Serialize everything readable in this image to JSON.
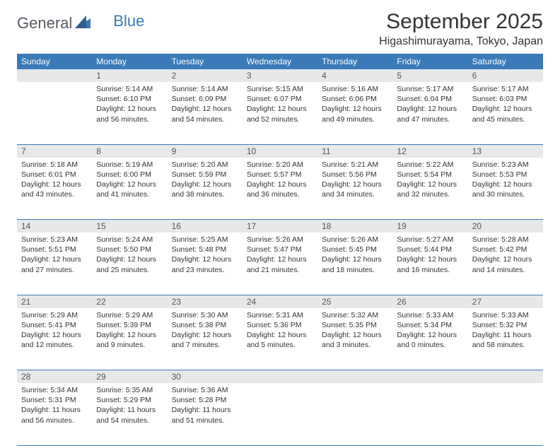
{
  "logo": {
    "text1": "General",
    "text2": "Blue"
  },
  "title": "September 2025",
  "location": "Higashimurayama, Tokyo, Japan",
  "colors": {
    "header_bg": "#3a7ab8",
    "header_text": "#ffffff",
    "daynum_bg": "#e7e8ea",
    "text": "#333333",
    "background": "#ffffff"
  },
  "day_headers": [
    "Sunday",
    "Monday",
    "Tuesday",
    "Wednesday",
    "Thursday",
    "Friday",
    "Saturday"
  ],
  "days": {
    "1": {
      "sunrise": "5:14 AM",
      "sunset": "6:10 PM",
      "daylight": "12 hours and 56 minutes."
    },
    "2": {
      "sunrise": "5:14 AM",
      "sunset": "6:09 PM",
      "daylight": "12 hours and 54 minutes."
    },
    "3": {
      "sunrise": "5:15 AM",
      "sunset": "6:07 PM",
      "daylight": "12 hours and 52 minutes."
    },
    "4": {
      "sunrise": "5:16 AM",
      "sunset": "6:06 PM",
      "daylight": "12 hours and 49 minutes."
    },
    "5": {
      "sunrise": "5:17 AM",
      "sunset": "6:04 PM",
      "daylight": "12 hours and 47 minutes."
    },
    "6": {
      "sunrise": "5:17 AM",
      "sunset": "6:03 PM",
      "daylight": "12 hours and 45 minutes."
    },
    "7": {
      "sunrise": "5:18 AM",
      "sunset": "6:01 PM",
      "daylight": "12 hours and 43 minutes."
    },
    "8": {
      "sunrise": "5:19 AM",
      "sunset": "6:00 PM",
      "daylight": "12 hours and 41 minutes."
    },
    "9": {
      "sunrise": "5:20 AM",
      "sunset": "5:59 PM",
      "daylight": "12 hours and 38 minutes."
    },
    "10": {
      "sunrise": "5:20 AM",
      "sunset": "5:57 PM",
      "daylight": "12 hours and 36 minutes."
    },
    "11": {
      "sunrise": "5:21 AM",
      "sunset": "5:56 PM",
      "daylight": "12 hours and 34 minutes."
    },
    "12": {
      "sunrise": "5:22 AM",
      "sunset": "5:54 PM",
      "daylight": "12 hours and 32 minutes."
    },
    "13": {
      "sunrise": "5:23 AM",
      "sunset": "5:53 PM",
      "daylight": "12 hours and 30 minutes."
    },
    "14": {
      "sunrise": "5:23 AM",
      "sunset": "5:51 PM",
      "daylight": "12 hours and 27 minutes."
    },
    "15": {
      "sunrise": "5:24 AM",
      "sunset": "5:50 PM",
      "daylight": "12 hours and 25 minutes."
    },
    "16": {
      "sunrise": "5:25 AM",
      "sunset": "5:48 PM",
      "daylight": "12 hours and 23 minutes."
    },
    "17": {
      "sunrise": "5:26 AM",
      "sunset": "5:47 PM",
      "daylight": "12 hours and 21 minutes."
    },
    "18": {
      "sunrise": "5:26 AM",
      "sunset": "5:45 PM",
      "daylight": "12 hours and 18 minutes."
    },
    "19": {
      "sunrise": "5:27 AM",
      "sunset": "5:44 PM",
      "daylight": "12 hours and 16 minutes."
    },
    "20": {
      "sunrise": "5:28 AM",
      "sunset": "5:42 PM",
      "daylight": "12 hours and 14 minutes."
    },
    "21": {
      "sunrise": "5:29 AM",
      "sunset": "5:41 PM",
      "daylight": "12 hours and 12 minutes."
    },
    "22": {
      "sunrise": "5:29 AM",
      "sunset": "5:39 PM",
      "daylight": "12 hours and 9 minutes."
    },
    "23": {
      "sunrise": "5:30 AM",
      "sunset": "5:38 PM",
      "daylight": "12 hours and 7 minutes."
    },
    "24": {
      "sunrise": "5:31 AM",
      "sunset": "5:36 PM",
      "daylight": "12 hours and 5 minutes."
    },
    "25": {
      "sunrise": "5:32 AM",
      "sunset": "5:35 PM",
      "daylight": "12 hours and 3 minutes."
    },
    "26": {
      "sunrise": "5:33 AM",
      "sunset": "5:34 PM",
      "daylight": "12 hours and 0 minutes."
    },
    "27": {
      "sunrise": "5:33 AM",
      "sunset": "5:32 PM",
      "daylight": "11 hours and 58 minutes."
    },
    "28": {
      "sunrise": "5:34 AM",
      "sunset": "5:31 PM",
      "daylight": "11 hours and 56 minutes."
    },
    "29": {
      "sunrise": "5:35 AM",
      "sunset": "5:29 PM",
      "daylight": "11 hours and 54 minutes."
    },
    "30": {
      "sunrise": "5:36 AM",
      "sunset": "5:28 PM",
      "daylight": "11 hours and 51 minutes."
    }
  },
  "layout": {
    "first_weekday_offset": 1,
    "num_days": 30,
    "labels": {
      "sunrise": "Sunrise:",
      "sunset": "Sunset:",
      "daylight": "Daylight:"
    }
  }
}
